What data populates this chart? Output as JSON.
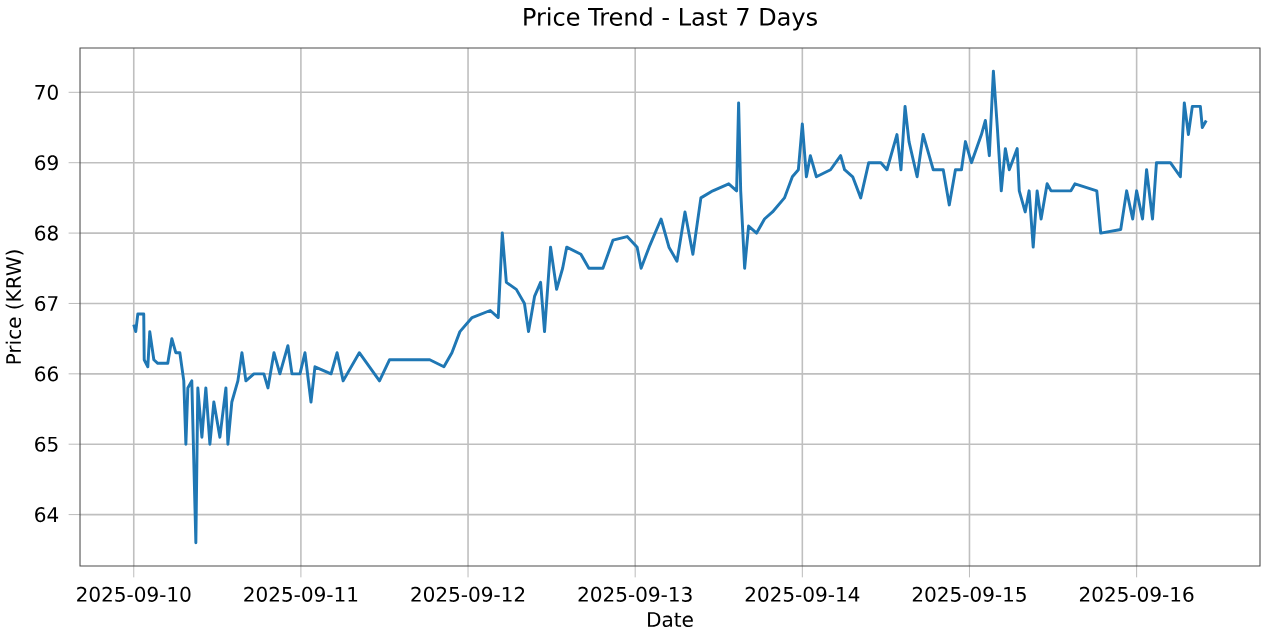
{
  "chart_data": {
    "type": "line",
    "title": "Price Trend - Last 7 Days",
    "xlabel": "Date",
    "ylabel": "Price (KRW)",
    "grid": true,
    "marker": "none",
    "line_style": "solid",
    "xlim": [
      "2025-09-09T16:17",
      "2025-09-16T17:43"
    ],
    "ylim": [
      63.27,
      70.63
    ],
    "xticks": [
      "2025-09-10",
      "2025-09-11",
      "2025-09-12",
      "2025-09-13",
      "2025-09-14",
      "2025-09-15",
      "2025-09-16"
    ],
    "yticks": [
      64,
      65,
      66,
      67,
      68,
      69,
      70
    ],
    "series": [
      {
        "color": "#1f77b4",
        "x": [
          "2025-09-10T00:00",
          "2025-09-10T00:17",
          "2025-09-10T00:35",
          "2025-09-10T01:26",
          "2025-09-10T01:30",
          "2025-09-10T02:01",
          "2025-09-10T02:18",
          "2025-09-10T02:53",
          "2025-09-10T03:27",
          "2025-09-10T04:53",
          "2025-09-10T05:28",
          "2025-09-10T06:02",
          "2025-09-10T06:37",
          "2025-09-10T07:11",
          "2025-09-10T07:29",
          "2025-09-10T07:46",
          "2025-09-10T08:20",
          "2025-09-10T08:55",
          "2025-09-10T09:12",
          "2025-09-10T09:47",
          "2025-09-10T10:21",
          "2025-09-10T10:56",
          "2025-09-10T11:30",
          "2025-09-10T12:22",
          "2025-09-10T13:14",
          "2025-09-10T13:31",
          "2025-09-10T14:05",
          "2025-09-10T14:57",
          "2025-09-10T15:32",
          "2025-09-10T16:06",
          "2025-09-10T17:15",
          "2025-09-10T18:41",
          "2025-09-10T19:16",
          "2025-09-10T20:08",
          "2025-09-10T20:59",
          "2025-09-10T22:08",
          "2025-09-10T22:43",
          "2025-09-10T23:52",
          "2025-09-11T00:35",
          "2025-09-11T01:27",
          "2025-09-11T02:01",
          "2025-09-11T04:20",
          "2025-09-11T05:12",
          "2025-09-11T06:04",
          "2025-09-11T08:23",
          "2025-09-11T11:17",
          "2025-09-11T12:43",
          "2025-09-11T15:37",
          "2025-09-11T18:30",
          "2025-09-11T20:32",
          "2025-09-11T21:41",
          "2025-09-11T22:50",
          "2025-09-12T00:35",
          "2025-09-12T03:11",
          "2025-09-12T04:20",
          "2025-09-12T04:55",
          "2025-09-12T05:30",
          "2025-09-12T06:56",
          "2025-09-12T08:06",
          "2025-09-12T08:41",
          "2025-09-12T09:33",
          "2025-09-12T10:25",
          "2025-09-12T10:59",
          "2025-09-12T11:51",
          "2025-09-12T12:43",
          "2025-09-12T13:35",
          "2025-09-12T14:10",
          "2025-09-12T16:12",
          "2025-09-12T17:21",
          "2025-09-12T19:22",
          "2025-09-12T20:49",
          "2025-09-12T22:51",
          "2025-09-13T00:17",
          "2025-09-13T00:51",
          "2025-09-13T02:00",
          "2025-09-13T03:43",
          "2025-09-13T04:51",
          "2025-09-13T06:00",
          "2025-09-13T07:09",
          "2025-09-13T08:17",
          "2025-09-13T09:26",
          "2025-09-13T11:09",
          "2025-09-13T13:26",
          "2025-09-13T14:34",
          "2025-09-13T14:51",
          "2025-09-13T15:09",
          "2025-09-13T15:43",
          "2025-09-13T16:17",
          "2025-09-13T17:26",
          "2025-09-13T18:34",
          "2025-09-13T19:43",
          "2025-09-13T21:26",
          "2025-09-13T22:34",
          "2025-09-13T23:26",
          "2025-09-14T00:00",
          "2025-09-14T00:35",
          "2025-09-14T01:09",
          "2025-09-14T02:01",
          "2025-09-14T04:03",
          "2025-09-14T05:30",
          "2025-09-14T06:04",
          "2025-09-14T07:14",
          "2025-09-14T08:23",
          "2025-09-14T09:32",
          "2025-09-14T11:17",
          "2025-09-14T12:09",
          "2025-09-14T13:35",
          "2025-09-14T14:10",
          "2025-09-14T14:45",
          "2025-09-14T15:19",
          "2025-09-14T16:29",
          "2025-09-14T17:21",
          "2025-09-14T18:48",
          "2025-09-14T20:14",
          "2025-09-14T21:06",
          "2025-09-14T21:59",
          "2025-09-14T22:51",
          "2025-09-14T23:25",
          "2025-09-15T00:17",
          "2025-09-15T01:43",
          "2025-09-15T02:17",
          "2025-09-15T02:51",
          "2025-09-15T03:26",
          "2025-09-15T04:00",
          "2025-09-15T04:34",
          "2025-09-15T05:09",
          "2025-09-15T05:43",
          "2025-09-15T06:51",
          "2025-09-15T07:09",
          "2025-09-15T08:00",
          "2025-09-15T08:34",
          "2025-09-15T09:09",
          "2025-09-15T09:43",
          "2025-09-15T10:17",
          "2025-09-15T11:09",
          "2025-09-15T11:43",
          "2025-09-15T14:34",
          "2025-09-15T15:09",
          "2025-09-15T18:17",
          "2025-09-15T18:51",
          "2025-09-15T21:43",
          "2025-09-15T22:34",
          "2025-09-15T23:26",
          "2025-09-16T00:00",
          "2025-09-16T00:51",
          "2025-09-16T01:26",
          "2025-09-16T02:17",
          "2025-09-16T02:51",
          "2025-09-16T04:51",
          "2025-09-16T06:17",
          "2025-09-16T06:51",
          "2025-09-16T07:26",
          "2025-09-16T08:00",
          "2025-09-16T09:09",
          "2025-09-16T09:26",
          "2025-09-16T10:00"
        ],
        "values": [
          66.7,
          66.6,
          66.85,
          66.85,
          66.2,
          66.1,
          66.6,
          66.2,
          66.15,
          66.15,
          66.5,
          66.3,
          66.3,
          65.9,
          65.0,
          65.8,
          65.9,
          63.6,
          65.8,
          65.1,
          65.8,
          65.0,
          65.6,
          65.1,
          65.8,
          65.0,
          65.6,
          65.9,
          66.3,
          65.9,
          66.0,
          66.0,
          65.8,
          66.3,
          66.0,
          66.4,
          66.0,
          66.0,
          66.3,
          65.6,
          66.1,
          66.0,
          66.3,
          65.9,
          66.3,
          65.9,
          66.2,
          66.2,
          66.2,
          66.1,
          66.3,
          66.6,
          66.8,
          66.9,
          66.8,
          68.0,
          67.3,
          67.2,
          67.0,
          66.6,
          67.1,
          67.3,
          66.6,
          67.8,
          67.2,
          67.5,
          67.8,
          67.7,
          67.5,
          67.5,
          67.9,
          67.95,
          67.8,
          67.5,
          67.8,
          68.2,
          67.8,
          67.6,
          68.3,
          67.7,
          68.5,
          68.6,
          68.7,
          68.6,
          69.85,
          68.6,
          67.5,
          68.1,
          68.0,
          68.2,
          68.3,
          68.5,
          68.8,
          68.9,
          69.55,
          68.8,
          69.1,
          68.8,
          68.9,
          69.1,
          68.9,
          68.8,
          68.5,
          69.0,
          69.0,
          68.9,
          69.4,
          68.9,
          69.8,
          69.3,
          68.8,
          69.4,
          68.9,
          68.9,
          68.4,
          68.9,
          68.9,
          69.3,
          69.0,
          69.4,
          69.6,
          69.1,
          70.3,
          69.5,
          68.6,
          69.2,
          68.9,
          69.2,
          68.6,
          68.3,
          68.6,
          67.8,
          68.6,
          68.2,
          68.7,
          68.6,
          68.6,
          68.7,
          68.6,
          68.0,
          68.05,
          68.6,
          68.2,
          68.6,
          68.2,
          68.9,
          68.2,
          69.0,
          69.0,
          68.8,
          69.85,
          69.4,
          69.8,
          69.8,
          69.5,
          69.6
        ]
      }
    ]
  }
}
